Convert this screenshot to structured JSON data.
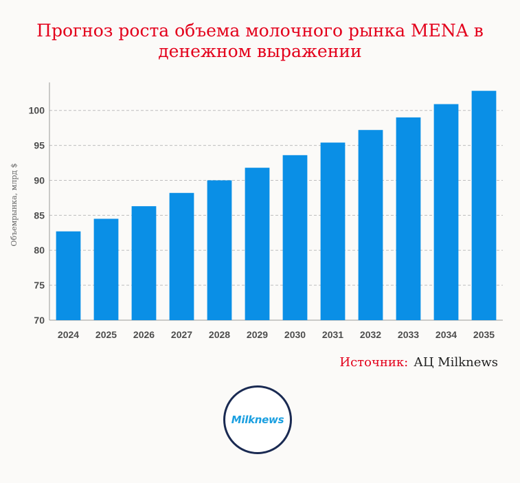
{
  "title_lines": [
    "Прогноз роста объема молочного рынка MENA в",
    "денежном выражении"
  ],
  "source": {
    "label": "Источник:",
    "value": "АЦ Milknews"
  },
  "logo_text": "Milknews",
  "colors": {
    "title": "#e3001b",
    "bar": "#0a8fe6",
    "grid": "#bdbdbd"
  },
  "chart_data": {
    "type": "bar",
    "categories": [
      "2024",
      "2025",
      "2026",
      "2027",
      "2028",
      "2029",
      "2030",
      "2031",
      "2032",
      "2033",
      "2034",
      "2035"
    ],
    "values": [
      82.7,
      84.5,
      86.3,
      88.2,
      90.0,
      91.8,
      93.6,
      95.4,
      97.2,
      99.0,
      100.9,
      102.8
    ],
    "ylabel": "Объемрынка, млрд $",
    "xlabel": "",
    "ylim": [
      70,
      104
    ],
    "yticks": [
      70,
      75,
      80,
      85,
      90,
      95,
      100
    ],
    "grid": true,
    "legend": "none"
  }
}
